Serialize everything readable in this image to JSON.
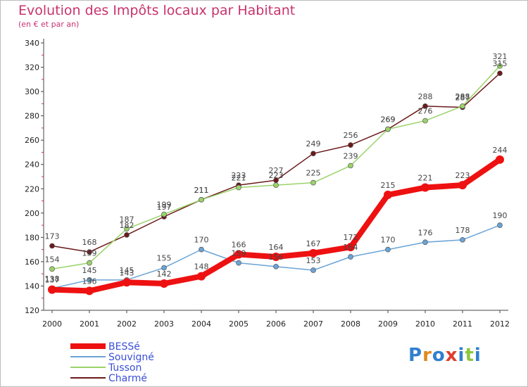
{
  "title": "Evolution des Impôts locaux par Habitant",
  "subtitle": "(en € et par an)",
  "logo": {
    "text": "Proxiti",
    "colors": [
      "#2f7fd0",
      "#e0891e",
      "#2f7fd0",
      "#e03c2c",
      "#2f7fd0",
      "#8cc63f",
      "#2f7fd0"
    ]
  },
  "chart_data": {
    "type": "line",
    "x": [
      "2000",
      "2001",
      "2002",
      "2003",
      "2004",
      "2005",
      "2006",
      "2007",
      "2008",
      "2009",
      "2010",
      "2011",
      "2012"
    ],
    "ylim": [
      120,
      340
    ],
    "yticks": [
      120,
      140,
      160,
      180,
      200,
      220,
      240,
      260,
      280,
      300,
      320,
      340
    ],
    "grid": false,
    "legend_position": "bottom-left",
    "series": [
      {
        "name": "BESSé",
        "color": "#ee1111",
        "width": 8,
        "marker": 6,
        "values": [
          137,
          136,
          143,
          142,
          148,
          166,
          164,
          167,
          172,
          215,
          221,
          223,
          244
        ],
        "labels": [
          "137",
          "136",
          "143",
          "142",
          "148",
          "166",
          "164",
          "167",
          "172",
          "215",
          "221",
          "223",
          "244"
        ]
      },
      {
        "name": "Souvigné",
        "color": "#6aa3d5",
        "width": 1.5,
        "marker": 3.5,
        "values": [
          138,
          145,
          145,
          155,
          170,
          159,
          156,
          153,
          164,
          170,
          176,
          178,
          190
        ],
        "labels": [
          "138",
          "145",
          "145",
          "155",
          "170",
          "159",
          "156",
          "153",
          "164",
          "170",
          "176",
          "178",
          "190"
        ]
      },
      {
        "name": "Tusson",
        "color": "#9ad36a",
        "width": 1.5,
        "marker": 3.5,
        "values": [
          154,
          159,
          187,
          199,
          211,
          221,
          223,
          225,
          239,
          269,
          276,
          288,
          321
        ],
        "labels": [
          "154",
          "159",
          "187",
          "199",
          "211",
          "221",
          "223",
          "225",
          "239",
          "269",
          "276",
          "288",
          "321"
        ]
      },
      {
        "name": "Charmé",
        "color": "#6b1a1a",
        "width": 1.5,
        "marker": 3.5,
        "values": [
          173,
          168,
          182,
          197,
          211,
          223,
          227,
          249,
          256,
          269,
          288,
          287,
          315
        ],
        "labels": [
          "173",
          "168",
          "182",
          "197",
          "211",
          "223",
          "227",
          "249",
          "256",
          "269",
          "288",
          "287",
          "315"
        ]
      }
    ]
  }
}
